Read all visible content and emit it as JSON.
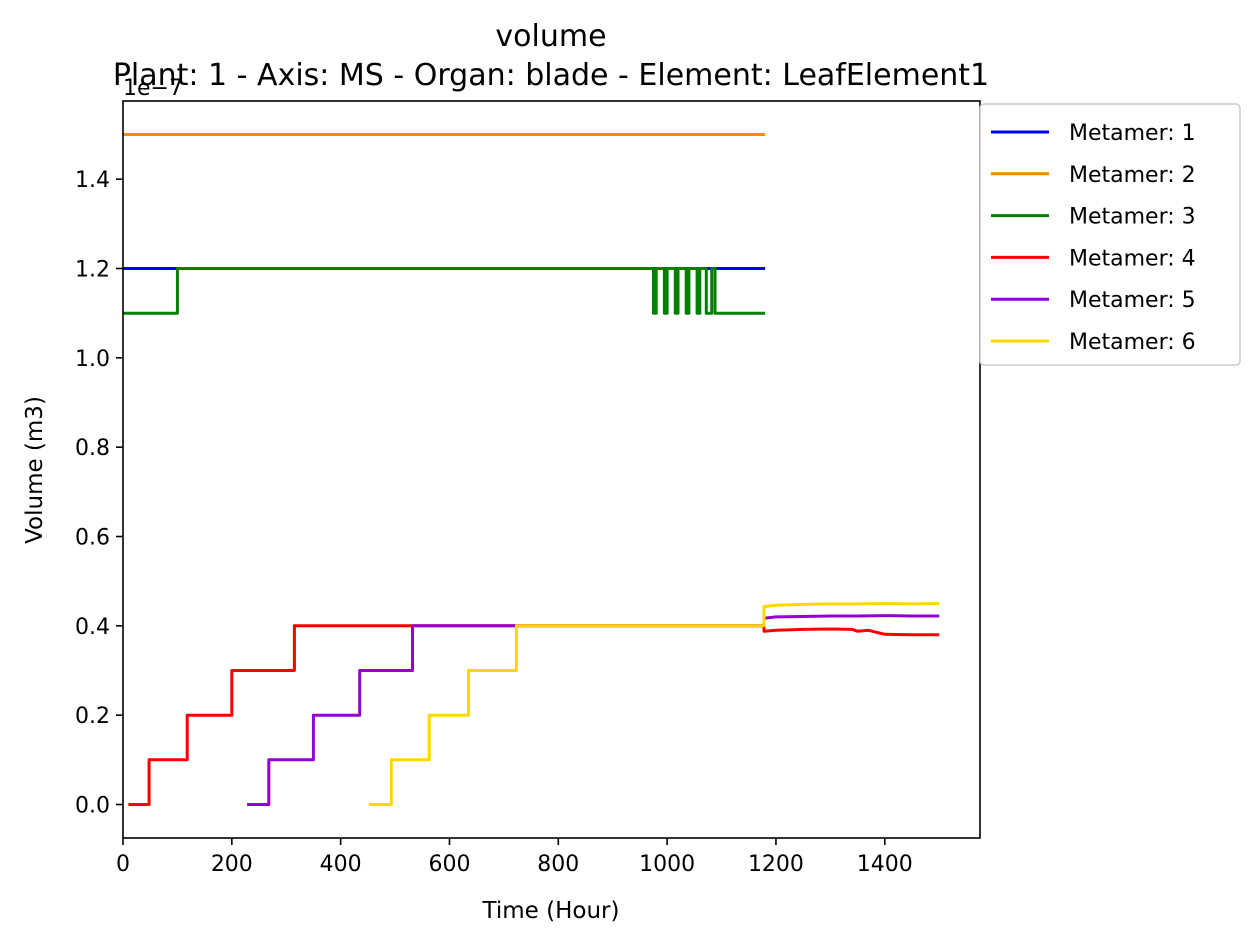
{
  "chart_data": {
    "type": "line",
    "title": "volume",
    "subtitle": "Plant: 1 - Axis: MS - Organ: blade - Element: LeafElement1",
    "xlabel": "Time (Hour)",
    "ylabel": "Volume (m3)",
    "y_offset_label": "1e−7",
    "xlim": [
      0,
      1575
    ],
    "ylim": [
      -0.075,
      1.575
    ],
    "x_ticks": [
      0,
      200,
      400,
      600,
      800,
      1000,
      1200,
      1400
    ],
    "x_tick_labels": [
      "0",
      "200",
      "400",
      "600",
      "800",
      "1000",
      "1200",
      "1400"
    ],
    "y_ticks": [
      0.0,
      0.2,
      0.4,
      0.6,
      0.8,
      1.0,
      1.2,
      1.4
    ],
    "y_tick_labels": [
      "0.0",
      "0.2",
      "0.4",
      "0.6",
      "0.8",
      "1.0",
      "1.2",
      "1.4"
    ],
    "grid": false,
    "legend_position": "outside-top-right",
    "series": [
      {
        "name": "Metamer: 1",
        "color": "#0000ff",
        "x": [
          0,
          1180
        ],
        "y": [
          1.2,
          1.2
        ]
      },
      {
        "name": "Metamer: 2",
        "color": "#ff8c00",
        "x": [
          0,
          1180
        ],
        "y": [
          1.5,
          1.5
        ]
      },
      {
        "name": "Metamer: 3",
        "color": "#008000",
        "x": [
          0,
          100,
          100,
          975,
          975,
          980,
          980,
          995,
          995,
          1000,
          1000,
          1015,
          1015,
          1020,
          1020,
          1035,
          1035,
          1040,
          1040,
          1055,
          1055,
          1060,
          1060,
          1072,
          1072,
          1082,
          1082,
          1088,
          1088,
          1180
        ],
        "y": [
          1.1,
          1.1,
          1.2,
          1.2,
          1.1,
          1.1,
          1.2,
          1.2,
          1.1,
          1.1,
          1.2,
          1.2,
          1.1,
          1.1,
          1.2,
          1.2,
          1.1,
          1.1,
          1.2,
          1.2,
          1.1,
          1.1,
          1.2,
          1.2,
          1.1,
          1.1,
          1.2,
          1.2,
          1.1,
          1.1
        ]
      },
      {
        "name": "Metamer: 4",
        "color": "#ff0000",
        "x": [
          10,
          48,
          48,
          118,
          118,
          200,
          200,
          315,
          315,
          1178,
          1178,
          1200,
          1250,
          1300,
          1340,
          1350,
          1370,
          1400,
          1450,
          1500
        ],
        "y": [
          0.0,
          0.0,
          0.1,
          0.1,
          0.2,
          0.2,
          0.3,
          0.3,
          0.4,
          0.4,
          0.388,
          0.39,
          0.392,
          0.393,
          0.392,
          0.388,
          0.39,
          0.381,
          0.38,
          0.38
        ]
      },
      {
        "name": "Metamer: 5",
        "color": "#9400d3",
        "x": [
          228,
          268,
          268,
          350,
          350,
          435,
          435,
          532,
          532,
          1178,
          1178,
          1200,
          1250,
          1300,
          1350,
          1400,
          1450,
          1500
        ],
        "y": [
          0.0,
          0.0,
          0.1,
          0.1,
          0.2,
          0.2,
          0.3,
          0.3,
          0.4,
          0.4,
          0.417,
          0.42,
          0.421,
          0.422,
          0.422,
          0.423,
          0.422,
          0.422
        ]
      },
      {
        "name": "Metamer: 6",
        "color": "#ffd700",
        "x": [
          452,
          493,
          493,
          563,
          563,
          635,
          635,
          723,
          723,
          1178,
          1178,
          1200,
          1250,
          1300,
          1350,
          1400,
          1450,
          1500
        ],
        "y": [
          0.0,
          0.0,
          0.1,
          0.1,
          0.2,
          0.2,
          0.3,
          0.3,
          0.4,
          0.4,
          0.443,
          0.446,
          0.448,
          0.449,
          0.449,
          0.45,
          0.449,
          0.45
        ]
      }
    ]
  }
}
